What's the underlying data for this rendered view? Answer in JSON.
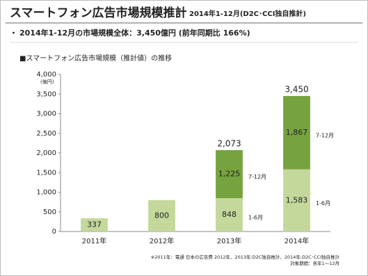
{
  "header": {
    "title": "スマートフォン広告市場規模推計",
    "subtitle": "2014年1-12月(D2C･CCI独自推計)",
    "bullet": "2014年1-12月の市場規模全体：3,450億円 (前年同期比 166%)"
  },
  "chart_data": {
    "type": "stacked-bar",
    "title": "■スマートフォン広告市場規模（推計値）の推移",
    "y_unit": "(億円)",
    "categories": [
      "2011年",
      "2012年",
      "2013年",
      "2014年"
    ],
    "series": [
      {
        "name": "1-6月",
        "color": "#c4d89b",
        "values": [
          337,
          800,
          848,
          1583
        ],
        "value_labels": [
          null,
          null,
          null,
          "1,583"
        ],
        "side_labels": [
          null,
          null,
          "1-6月",
          "1-6月"
        ]
      },
      {
        "name": "7-12月",
        "color": "#77a33f",
        "values": [
          null,
          null,
          1225,
          1867
        ],
        "value_labels": [
          null,
          null,
          "1,225",
          "1,867"
        ],
        "side_labels": [
          null,
          null,
          "7-12月",
          "7-12月"
        ]
      }
    ],
    "totals": [
      null,
      null,
      2073,
      3450
    ],
    "total_labels": [
      null,
      null,
      "2,073",
      "3,450"
    ],
    "ylim": [
      0,
      4000
    ],
    "yticks": [
      0,
      500,
      {
        "value": 1000,
        "label": "1,000"
      },
      {
        "value": 1500,
        "label": "1,500"
      },
      {
        "value": 2000,
        "label": "2,000"
      },
      {
        "value": 2500,
        "label": "2,500"
      },
      {
        "value": 3000,
        "label": "3,000"
      },
      {
        "value": 3500,
        "label": "3,500"
      },
      {
        "value": 4000,
        "label": "4,000"
      }
    ],
    "grid": false
  },
  "footnote": [
    "※2011年：電通 日本の広告費 2012年、2013年:D2C独自推計、2014年:D2C･CCI独自推計",
    "対象期間：各年1～12月"
  ]
}
